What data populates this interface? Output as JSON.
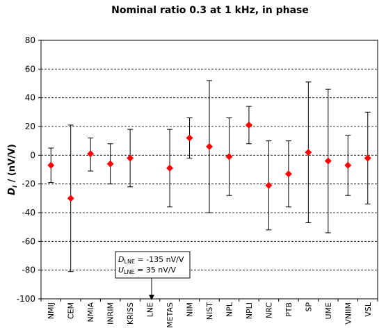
{
  "chart_data": {
    "type": "scatter",
    "title": "Nominal ratio 0.3 at 1 kHz, in phase",
    "ylabel_symbol": "D",
    "ylabel_subscript": "i",
    "ylabel_unit": " / (nV/V)",
    "ylim": [
      -100,
      80
    ],
    "yticks": [
      -100,
      -80,
      -60,
      -40,
      -20,
      0,
      20,
      40,
      60,
      80
    ],
    "grid": "horizontal-dashed",
    "categories": [
      "NMIJ",
      "CEM",
      "NMIA",
      "INRIM",
      "KRISS",
      "LNE",
      "METAS",
      "NIM",
      "NIST",
      "NPL",
      "NPLI",
      "NRC",
      "PTB",
      "SP",
      "UME",
      "VNIIM",
      "VSL"
    ],
    "series": [
      {
        "values": [
          -7,
          -30,
          1,
          -6,
          -2,
          null,
          -9,
          12,
          6,
          -1,
          21,
          -21,
          -13,
          2,
          -4,
          -7,
          -2
        ],
        "error_low": [
          -19,
          -81,
          -11,
          -20,
          -22,
          null,
          -36,
          -2,
          -40,
          -28,
          8,
          -52,
          -36,
          -47,
          -54,
          -28,
          -34
        ],
        "error_high": [
          5,
          21,
          12,
          8,
          18,
          null,
          18,
          26,
          52,
          26,
          34,
          10,
          10,
          51,
          46,
          14,
          30
        ],
        "marker_color": "#ff0000"
      }
    ],
    "annotation": {
      "line1_symbol": "D",
      "line1_subscript": "LNE",
      "line1_text": " = -135 nV/V",
      "line2_symbol": "U",
      "line2_subscript": "LNE",
      "line2_text": " = 35 nV/V",
      "category": "LNE"
    }
  }
}
